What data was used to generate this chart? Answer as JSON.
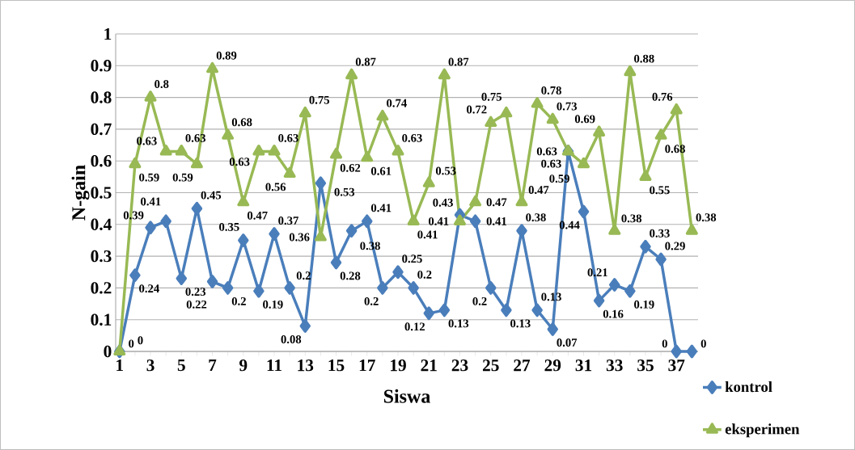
{
  "chart_data": {
    "type": "line",
    "xlabel": "Siswa",
    "ylabel": "N-gain",
    "categories": [
      "1",
      null,
      "3",
      null,
      "5",
      null,
      "7",
      null,
      "9",
      null,
      "11",
      null,
      "13",
      null,
      "15",
      null,
      "17",
      null,
      "19",
      null,
      "21",
      null,
      "23",
      null,
      "25",
      null,
      "27",
      null,
      "29",
      null,
      "31",
      null,
      "33",
      null,
      "35",
      null,
      "37",
      null
    ],
    "series": [
      {
        "name": "kontrol",
        "color": "#4a7ebb",
        "marker": "diamond",
        "values": [
          0,
          0.24,
          0.39,
          0.41,
          0.23,
          0.45,
          0.22,
          0.2,
          0.35,
          0.19,
          0.37,
          0.2,
          0.08,
          0.53,
          0.28,
          0.38,
          0.41,
          0.2,
          0.25,
          0.2,
          0.12,
          0.13,
          0.43,
          0.41,
          0.2,
          0.13,
          0.38,
          0.13,
          0.07,
          0.63,
          0.44,
          0.16,
          0.21,
          0.19,
          0.33,
          0.29,
          0,
          0
        ]
      },
      {
        "name": "eksperimen",
        "color": "#98b954",
        "marker": "triangle",
        "values": [
          0,
          0.59,
          0.8,
          0.63,
          0.63,
          0.59,
          0.89,
          0.68,
          0.47,
          0.63,
          0.63,
          0.56,
          0.75,
          0.36,
          0.62,
          0.87,
          0.61,
          0.74,
          0.63,
          0.41,
          0.53,
          0.87,
          0.41,
          0.47,
          0.72,
          0.75,
          0.47,
          0.78,
          0.73,
          0.63,
          0.59,
          0.69,
          0.38,
          0.88,
          0.55,
          0.68,
          0.76,
          0.38
        ]
      }
    ],
    "ylim": [
      0,
      1
    ],
    "yticks": [
      0,
      0.1,
      0.2,
      0.3,
      0.4,
      0.5,
      0.6,
      0.7,
      0.8,
      0.9,
      1
    ],
    "grid": "y",
    "legend": "bottom right",
    "data_labels": true,
    "line_style": "solid"
  }
}
